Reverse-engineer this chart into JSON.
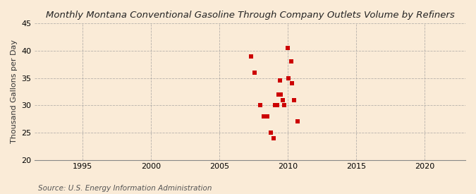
{
  "title": "Monthly Montana Conventional Gasoline Through Company Outlets Volume by Refiners",
  "ylabel": "Thousand Gallons per Day",
  "source": "Source: U.S. Energy Information Administration",
  "xlim": [
    1991.5,
    2023
  ],
  "ylim": [
    20,
    45
  ],
  "xticks": [
    1995,
    2000,
    2005,
    2010,
    2015,
    2020
  ],
  "yticks": [
    20,
    25,
    30,
    35,
    40,
    45
  ],
  "background_color": "#faebd7",
  "plot_bg_color": "#faebd7",
  "marker_color": "#cc0000",
  "marker_size": 18,
  "data_x": [
    2007.33,
    2007.58,
    2008.0,
    2008.25,
    2008.5,
    2008.75,
    2009.0,
    2009.08,
    2009.25,
    2009.33,
    2009.42,
    2009.5,
    2009.67,
    2009.75,
    2010.0,
    2010.08,
    2010.25,
    2010.33,
    2010.5,
    2010.75
  ],
  "data_y": [
    39.0,
    36.0,
    30.0,
    28.0,
    28.0,
    25.0,
    24.0,
    30.0,
    30.0,
    32.0,
    34.5,
    32.0,
    31.0,
    30.0,
    40.5,
    35.0,
    38.0,
    34.0,
    31.0,
    27.0
  ],
  "title_fontsize": 9.5,
  "tick_fontsize": 8,
  "ylabel_fontsize": 8,
  "source_fontsize": 7.5
}
